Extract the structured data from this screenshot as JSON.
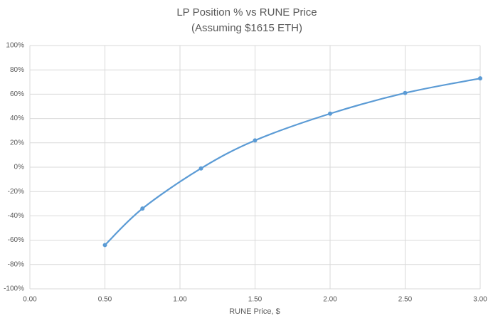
{
  "chart_data": {
    "type": "scatter-smooth",
    "title": "LP Position % vs RUNE Price",
    "subtitle": "(Assuming $1615 ETH)",
    "x_label": "RUNE Price, $",
    "x": [
      0.5,
      0.75,
      1.14,
      1.5,
      2.0,
      2.5,
      3.0
    ],
    "values": [
      -64,
      -34,
      -1,
      22,
      44,
      61,
      73
    ],
    "color": "#5b9bd5",
    "xlim": [
      0,
      3
    ],
    "xticks": [
      {
        "value": 0,
        "label": "0.00"
      },
      {
        "value": 0.5,
        "label": "0.50"
      },
      {
        "value": 1,
        "label": "1.00"
      },
      {
        "value": 1.5,
        "label": "1.50"
      },
      {
        "value": 2,
        "label": "2.00"
      },
      {
        "value": 2.5,
        "label": "2.50"
      },
      {
        "value": 3,
        "label": "3.00"
      }
    ],
    "ylim": [
      -100,
      100
    ],
    "yticks": [
      {
        "value": -100,
        "label": "-100%"
      },
      {
        "value": -80,
        "label": "-80%"
      },
      {
        "value": -60,
        "label": "-60%"
      },
      {
        "value": -40,
        "label": "-40%"
      },
      {
        "value": -20,
        "label": "-20%"
      },
      {
        "value": 0,
        "label": "0%"
      },
      {
        "value": 20,
        "label": "20%"
      },
      {
        "value": 40,
        "label": "40%"
      },
      {
        "value": 60,
        "label": "60%"
      },
      {
        "value": 80,
        "label": "80%"
      },
      {
        "value": 100,
        "label": "100%"
      }
    ],
    "grid": true
  }
}
